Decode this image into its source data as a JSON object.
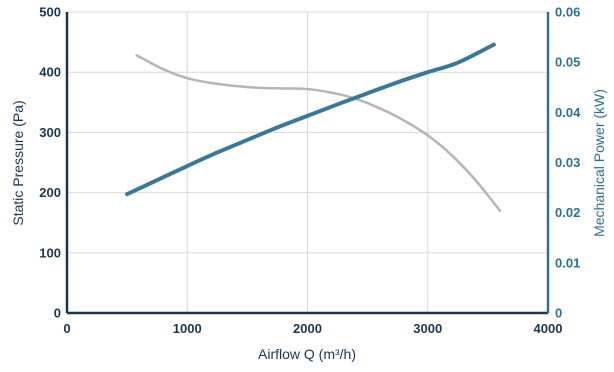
{
  "chart_data": {
    "type": "line",
    "xlabel": "Airflow Q (m³/h)",
    "ylabel_left": "Static Pressure (Pa)",
    "ylabel_right": "Mechanical Power (kW)",
    "xlim": [
      0,
      4000
    ],
    "ylim_left": [
      0,
      500
    ],
    "ylim_right": [
      0,
      0.06
    ],
    "x_ticks": [
      "0",
      "1000",
      "2000",
      "3000",
      "4000"
    ],
    "y_left_ticks": [
      "0",
      "100",
      "200",
      "300",
      "400",
      "500"
    ],
    "y_right_ticks": [
      "0",
      "0.01",
      "0.02",
      "0.03",
      "0.04",
      "0.05",
      "0.06"
    ],
    "grid": true,
    "series": [
      {
        "axis": "left",
        "color": "#b5b5b5",
        "points": [
          [
            580,
            428
          ],
          [
            800,
            405
          ],
          [
            1000,
            390
          ],
          [
            1200,
            382
          ],
          [
            1400,
            377
          ],
          [
            1600,
            374
          ],
          [
            1800,
            373
          ],
          [
            2000,
            372
          ],
          [
            2200,
            366
          ],
          [
            2400,
            356
          ],
          [
            2600,
            340
          ],
          [
            2800,
            320
          ],
          [
            3000,
            295
          ],
          [
            3200,
            262
          ],
          [
            3400,
            220
          ],
          [
            3600,
            170
          ]
        ]
      },
      {
        "axis": "right",
        "color": "#3a7896",
        "points": [
          [
            500,
            0.0237
          ],
          [
            750,
            0.0265
          ],
          [
            1000,
            0.0293
          ],
          [
            1250,
            0.032
          ],
          [
            1500,
            0.0345
          ],
          [
            1750,
            0.037
          ],
          [
            2000,
            0.0393
          ],
          [
            2250,
            0.0416
          ],
          [
            2500,
            0.0438
          ],
          [
            2750,
            0.046
          ],
          [
            3000,
            0.048
          ],
          [
            3250,
            0.0499
          ],
          [
            3550,
            0.0535
          ]
        ]
      }
    ]
  }
}
